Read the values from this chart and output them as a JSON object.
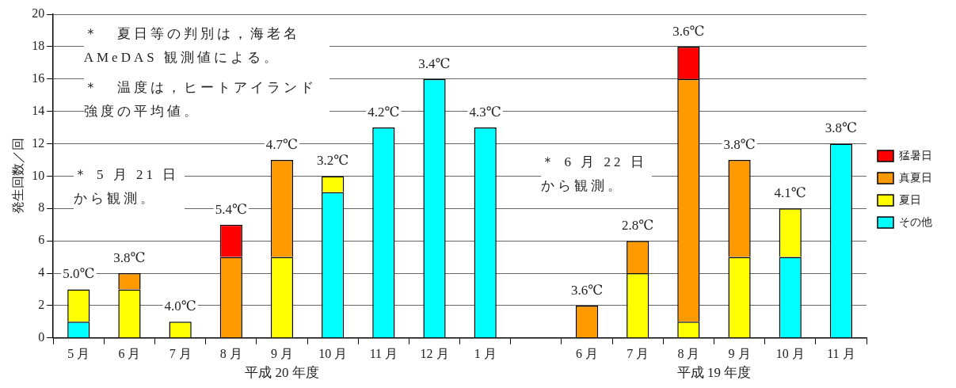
{
  "chart_data": {
    "type": "bar",
    "stacked": true,
    "ylabel": "発生回数／回",
    "categories": [
      "5 月",
      "6 月",
      "7 月",
      "8 月",
      "9 月",
      "10 月",
      "11 月",
      "12 月",
      "1 月",
      null,
      "6 月",
      "7 月",
      "8 月",
      "9 月",
      "10 月",
      "11 月"
    ],
    "series": [
      {
        "name": "その他",
        "color": "#00ffff",
        "values": [
          1,
          0,
          0,
          0,
          0,
          9,
          13,
          16,
          13,
          null,
          0,
          0,
          0,
          0,
          5,
          12
        ]
      },
      {
        "name": "夏日",
        "color": "#ffff00",
        "values": [
          2,
          3,
          1,
          0,
          5,
          1,
          0,
          0,
          0,
          null,
          0,
          4,
          1,
          5,
          3,
          0
        ]
      },
      {
        "name": "真夏日",
        "color": "#ff9900",
        "values": [
          0,
          1,
          0,
          5,
          6,
          0,
          0,
          0,
          0,
          null,
          2,
          2,
          15,
          6,
          0,
          0
        ]
      },
      {
        "name": "猛暑日",
        "color": "#ff0000",
        "values": [
          0,
          0,
          0,
          2,
          0,
          0,
          0,
          0,
          0,
          null,
          0,
          0,
          2,
          0,
          0,
          0
        ]
      }
    ],
    "ylim": [
      0,
      20
    ],
    "yticks": [
      0,
      2,
      4,
      6,
      8,
      10,
      12,
      14,
      16,
      18,
      20
    ],
    "grid": "y",
    "legend": "right",
    "annotations": [
      "＊　夏日等の判別は，海老名 AMeDAS 観測値による。",
      "＊　温度は，ヒートアイランド強度の平均値。",
      "＊ 5 月 21 日から観測。",
      "＊ 6 月 22 日から観測。",
      "平成 20 年度",
      "平成 19 年度",
      {
        "text": "5.0℃",
        "x": "5 月",
        "y": 3
      },
      {
        "text": "3.8℃",
        "x": "6 月",
        "y": 4
      },
      {
        "text": "4.0℃",
        "x": "7 月",
        "y": 1
      },
      {
        "text": "5.4℃",
        "x": "8 月",
        "y": 7
      },
      {
        "text": "4.7℃",
        "x": "9 月",
        "y": 11
      },
      {
        "text": "3.2℃",
        "x": "10 月",
        "y": 10
      },
      {
        "text": "4.2℃",
        "x": "11 月",
        "y": 13
      },
      {
        "text": "3.4℃",
        "x": "12 月",
        "y": 16
      },
      {
        "text": "4.3℃",
        "x": "1 月",
        "y": 13
      },
      "3.6℃",
      "2.8℃",
      "3.6℃",
      "3.8℃",
      "4.1℃",
      "3.8℃"
    ]
  }
}
